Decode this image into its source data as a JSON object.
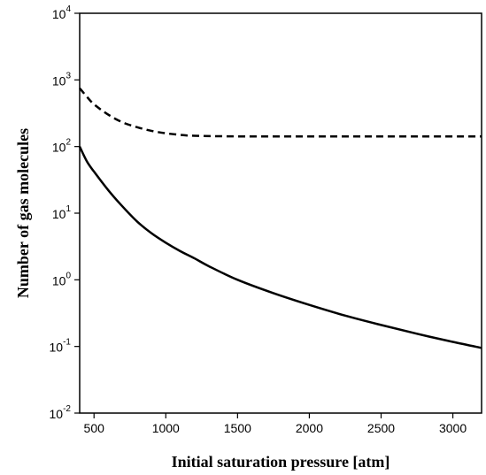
{
  "chart_data": {
    "type": "line",
    "title": "",
    "xlabel": "Initial saturation pressure [atm]",
    "ylabel": "Number of gas molecules",
    "xlim": [
      400,
      3200
    ],
    "ylim": [
      0.01,
      10000
    ],
    "yscale": "log",
    "grid": false,
    "legend": "none",
    "x_ticks": [
      "500",
      "1000",
      "1500",
      "2000",
      "2500",
      "3000"
    ],
    "y_ticks": [
      {
        "base": "10",
        "exp": "-2"
      },
      {
        "base": "10",
        "exp": "-1"
      },
      {
        "base": "10",
        "exp": "0"
      },
      {
        "base": "10",
        "exp": "1"
      },
      {
        "base": "10",
        "exp": "2"
      },
      {
        "base": "10",
        "exp": "3"
      },
      {
        "base": "10",
        "exp": "4"
      }
    ],
    "series": [
      {
        "style": "dashed",
        "color": "#000000",
        "x": [
          400,
          450,
          500,
          600,
          700,
          800,
          900,
          1000,
          1100,
          1200,
          1500,
          2000,
          2500,
          3000,
          3200
        ],
        "y": [
          750,
          560,
          430,
          300,
          230,
          195,
          172,
          158,
          150,
          145,
          142,
          142,
          142,
          142,
          142
        ]
      },
      {
        "style": "solid",
        "color": "#000000",
        "x": [
          400,
          450,
          500,
          600,
          700,
          800,
          900,
          1000,
          1100,
          1200,
          1300,
          1500,
          1750,
          2000,
          2250,
          2500,
          2750,
          3000,
          3200
        ],
        "y": [
          100,
          60,
          42,
          22,
          12.5,
          7.5,
          5.0,
          3.6,
          2.7,
          2.1,
          1.6,
          1.0,
          0.63,
          0.42,
          0.29,
          0.21,
          0.155,
          0.117,
          0.095
        ]
      }
    ]
  }
}
